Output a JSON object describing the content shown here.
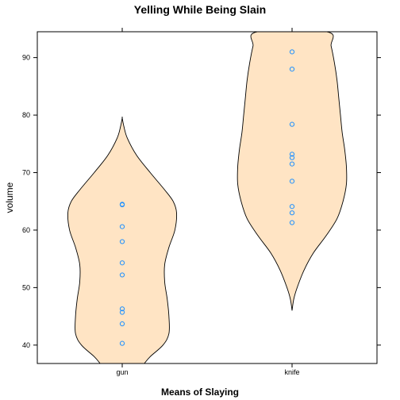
{
  "chart_data": {
    "type": "violin",
    "title": "Yelling While Being Slain",
    "xlabel": "Means of Slaying",
    "ylabel": "volume",
    "ylim": [
      36.8,
      94.5
    ],
    "y_ticks": [
      40,
      50,
      60,
      70,
      80,
      90
    ],
    "categories": [
      "gun",
      "knife"
    ],
    "violin_fill": "#ffe4c4",
    "point_color": "#1e90ff",
    "groups": [
      {
        "category": "gun",
        "points": [
          40.3,
          43.7,
          45.7,
          46.3,
          52.2,
          54.3,
          58.0,
          60.6,
          64.4,
          64.5
        ],
        "density": [
          [
            36.8,
            0.26
          ],
          [
            38,
            0.33
          ],
          [
            40,
            0.48
          ],
          [
            42,
            0.55
          ],
          [
            45,
            0.55
          ],
          [
            48,
            0.53
          ],
          [
            51,
            0.5
          ],
          [
            54,
            0.5
          ],
          [
            57,
            0.55
          ],
          [
            60,
            0.62
          ],
          [
            63,
            0.64
          ],
          [
            65,
            0.6
          ],
          [
            67,
            0.5
          ],
          [
            70,
            0.33
          ],
          [
            73,
            0.17
          ],
          [
            76,
            0.06
          ],
          [
            78,
            0.02
          ],
          [
            79.5,
            0.0
          ]
        ]
      },
      {
        "category": "knife",
        "points": [
          61.3,
          63.0,
          64.1,
          68.5,
          71.5,
          72.6,
          73.2,
          78.4,
          88.0,
          91.0
        ],
        "density": [
          [
            46,
            0.0
          ],
          [
            48,
            0.02
          ],
          [
            50,
            0.06
          ],
          [
            53,
            0.14
          ],
          [
            56,
            0.25
          ],
          [
            59,
            0.4
          ],
          [
            62,
            0.53
          ],
          [
            65,
            0.6
          ],
          [
            68,
            0.64
          ],
          [
            71,
            0.64
          ],
          [
            74,
            0.62
          ],
          [
            77,
            0.59
          ],
          [
            80,
            0.57
          ],
          [
            83,
            0.55
          ],
          [
            86,
            0.53
          ],
          [
            89,
            0.5
          ],
          [
            92,
            0.46
          ],
          [
            94.5,
            0.41
          ]
        ]
      }
    ]
  }
}
